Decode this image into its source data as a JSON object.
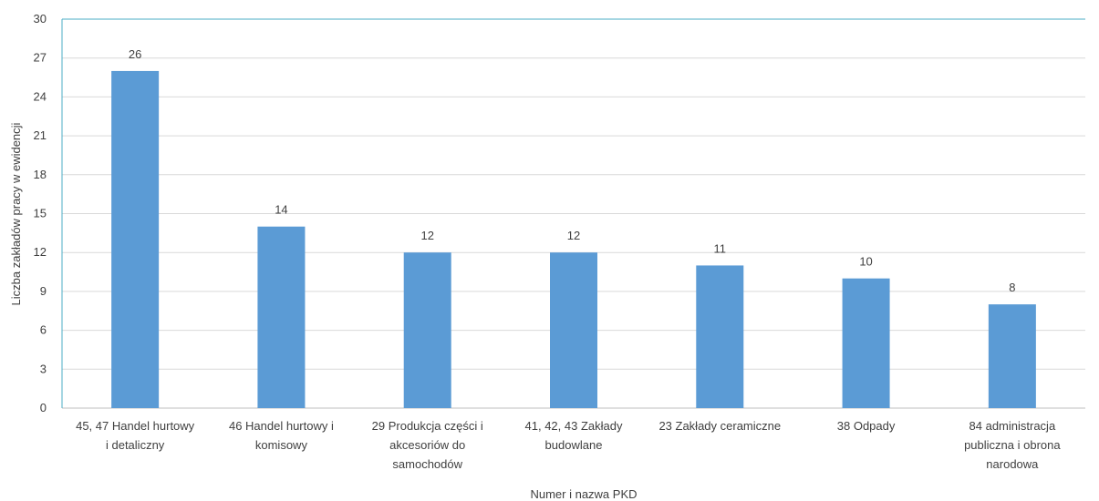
{
  "chart_data": {
    "type": "bar",
    "categories": [
      [
        "45, 47 Handel hurtowy",
        "i detaliczny"
      ],
      [
        "46 Handel hurtowy i",
        "komisowy"
      ],
      [
        "29 Produkcja części i",
        "akcesoriów do",
        "samochodów"
      ],
      [
        "41, 42, 43 Zakłady",
        "budowlane"
      ],
      [
        "23 Zakłady ceramiczne"
      ],
      [
        "38 Odpady"
      ],
      [
        "84 administracja",
        "publiczna i obrona",
        "narodowa"
      ]
    ],
    "values": [
      26,
      14,
      12,
      12,
      11,
      10,
      8
    ],
    "xlabel": "Numer i nazwa PKD",
    "ylabel": "Liczba zakładów pracy w ewidencji",
    "ylim": [
      0,
      30
    ],
    "yticks": [
      0,
      3,
      6,
      9,
      12,
      15,
      18,
      21,
      24,
      27,
      30
    ],
    "grid": true,
    "colors": {
      "bar": "#5b9bd5",
      "grid": "#d9d9d9",
      "axis_line": "#bfbfbf"
    }
  }
}
